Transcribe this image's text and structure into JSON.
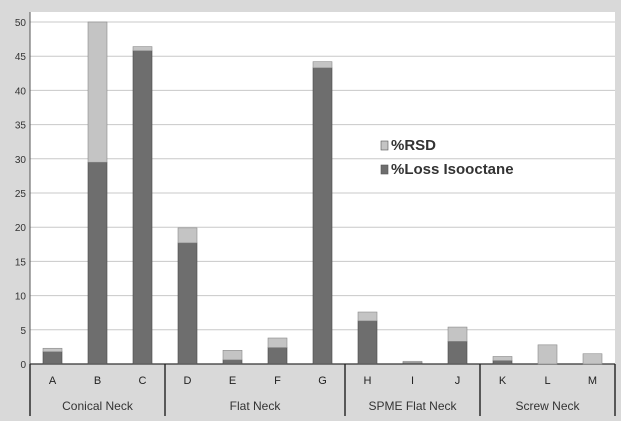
{
  "chart_data": {
    "type": "bar",
    "stacked": true,
    "categories": [
      "A",
      "B",
      "C",
      "D",
      "E",
      "F",
      "G",
      "H",
      "I",
      "J",
      "K",
      "L",
      "M"
    ],
    "groups": [
      {
        "label": "Conical Neck",
        "categories": [
          "A",
          "B",
          "C"
        ]
      },
      {
        "label": "Flat Neck",
        "categories": [
          "D",
          "E",
          "F",
          "G"
        ]
      },
      {
        "label": "SPME Flat Neck",
        "categories": [
          "H",
          "I",
          "J"
        ]
      },
      {
        "label": "Screw Neck",
        "categories": [
          "K",
          "L",
          "M"
        ]
      }
    ],
    "series": [
      {
        "name": "%Loss Isooctane",
        "color": "#6e6e6e",
        "values": [
          1.8,
          29.5,
          45.8,
          17.7,
          0.6,
          2.4,
          43.3,
          6.3,
          0.2,
          3.3,
          0.5,
          0.0,
          0.0
        ]
      },
      {
        "name": "%RSD",
        "color": "#c4c4c4",
        "values": [
          0.5,
          21.0,
          0.6,
          2.2,
          1.4,
          1.4,
          0.9,
          1.3,
          0.2,
          2.1,
          0.6,
          2.8,
          1.5
        ]
      }
    ],
    "legend_order": [
      "%RSD",
      "%Loss Isooctane"
    ],
    "legend_position": "center-right",
    "y_ticks": [
      0,
      5,
      10,
      15,
      20,
      25,
      30,
      35,
      40,
      45,
      50
    ],
    "ylim": [
      0,
      50
    ],
    "grid": true,
    "title": "",
    "xlabel": "",
    "ylabel": ""
  }
}
